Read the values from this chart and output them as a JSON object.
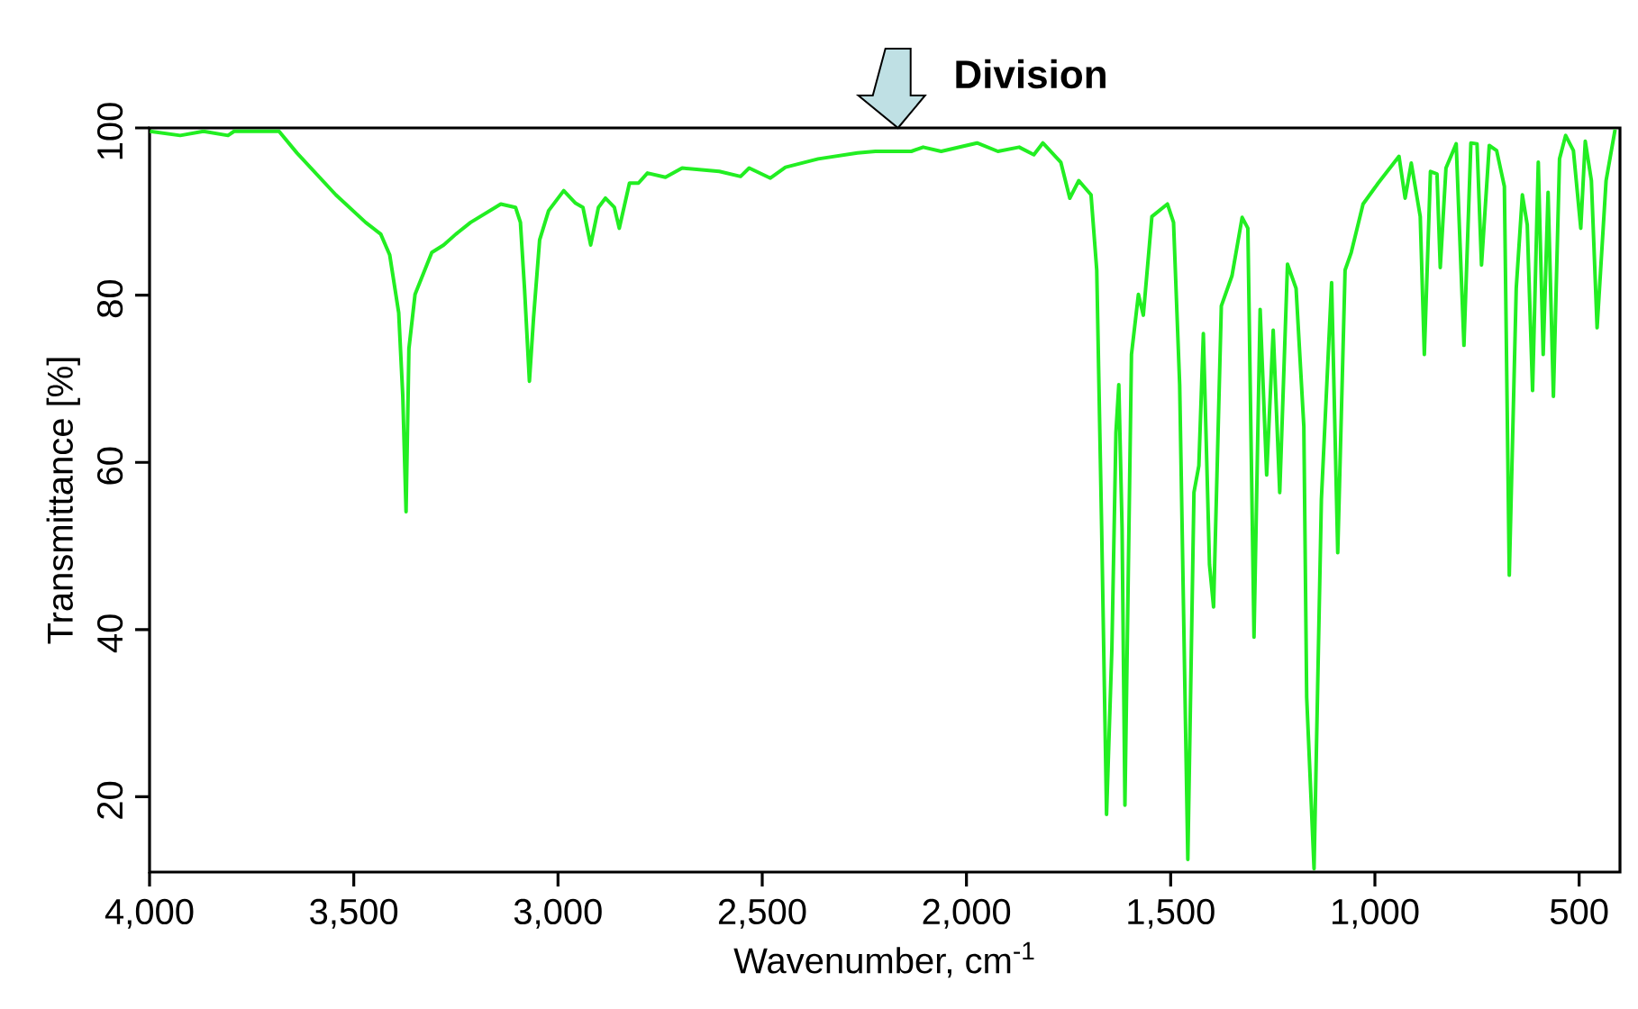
{
  "chart_data": {
    "type": "line",
    "xlabel": "Wavenumber, cm$^{-1}$",
    "ylabel": "Transmittance [%]",
    "color": "#22ee22",
    "line_style": "solid",
    "marker": "none",
    "xlim": [
      4000,
      400
    ],
    "ylim": [
      11,
      100
    ],
    "xticks": [
      {
        "value": 4000,
        "label": "4,000"
      },
      {
        "value": 3500,
        "label": "3,500"
      },
      {
        "value": 3000,
        "label": "3,000"
      },
      {
        "value": 2500,
        "label": "2,500"
      },
      {
        "value": 2000,
        "label": "2,000"
      },
      {
        "value": 1500,
        "label": "1,500"
      },
      {
        "value": 1000,
        "label": "1,000"
      },
      {
        "value": 500,
        "label": "500"
      }
    ],
    "yticks": [
      20,
      40,
      60,
      80,
      100
    ],
    "annotations": [
      "Division"
    ],
    "x": [
      3999,
      3925,
      3868,
      3808,
      3793,
      3683,
      3639,
      3544,
      3471,
      3434,
      3412,
      3390,
      3380,
      3372,
      3365,
      3350,
      3309,
      3280,
      3250,
      3214,
      3177,
      3140,
      3104,
      3092,
      3082,
      3070,
      3060,
      3045,
      3023,
      2986,
      2957,
      2939,
      2920,
      2901,
      2884,
      2862,
      2850,
      2825,
      2803,
      2781,
      2737,
      2696,
      2605,
      2553,
      2532,
      2480,
      2443,
      2363,
      2267,
      2223,
      2135,
      2106,
      2062,
      1974,
      1923,
      1871,
      1835,
      1813,
      1769,
      1747,
      1725,
      1695,
      1681,
      1669,
      1657,
      1644,
      1634,
      1627,
      1619,
      1612,
      1596,
      1579,
      1567,
      1546,
      1508,
      1493,
      1478,
      1458,
      1443,
      1431,
      1420,
      1405,
      1395,
      1376,
      1350,
      1325,
      1311,
      1296,
      1281,
      1265,
      1249,
      1233,
      1214,
      1193,
      1174,
      1167,
      1149,
      1131,
      1106,
      1091,
      1073,
      1058,
      1029,
      992,
      941,
      926,
      911,
      889,
      879,
      864,
      848,
      840,
      826,
      801,
      782,
      765,
      750,
      739,
      720,
      702,
      683,
      671,
      654,
      639,
      627,
      614,
      600,
      588,
      576,
      563,
      548,
      533,
      514,
      496,
      485,
      470,
      456,
      434,
      412
    ],
    "values": [
      99.6,
      99.1,
      99.6,
      99.1,
      99.6,
      99.6,
      97.0,
      92.0,
      88.7,
      87.3,
      84.8,
      77.9,
      67.9,
      54.1,
      73.6,
      80.1,
      85.1,
      86.0,
      87.3,
      88.7,
      89.8,
      90.9,
      90.5,
      88.7,
      80.8,
      69.7,
      77.2,
      86.6,
      90.1,
      92.5,
      91.0,
      90.5,
      86.0,
      90.5,
      91.6,
      90.5,
      88.0,
      93.4,
      93.4,
      94.6,
      94.1,
      95.2,
      94.8,
      94.2,
      95.2,
      94.0,
      95.3,
      96.3,
      97.0,
      97.2,
      97.2,
      97.7,
      97.2,
      98.2,
      97.2,
      97.7,
      96.8,
      98.2,
      95.9,
      91.6,
      93.7,
      92.0,
      83.0,
      52.1,
      17.9,
      37.7,
      63.6,
      69.3,
      52.1,
      19.0,
      72.9,
      80.1,
      77.6,
      89.4,
      90.9,
      88.7,
      69.3,
      12.5,
      56.4,
      59.6,
      75.4,
      47.8,
      42.7,
      78.7,
      82.3,
      89.3,
      88.0,
      39.1,
      78.3,
      58.5,
      75.8,
      56.4,
      83.7,
      80.8,
      64.3,
      31.9,
      11.4,
      55.6,
      81.5,
      49.2,
      83.0,
      85.1,
      90.9,
      93.4,
      96.6,
      91.6,
      95.8,
      89.4,
      72.9,
      94.8,
      94.5,
      83.3,
      95.2,
      98.1,
      74.0,
      98.2,
      98.1,
      83.6,
      97.9,
      97.3,
      93.0,
      46.5,
      80.8,
      92.0,
      88.4,
      68.6,
      95.9,
      72.9,
      92.3,
      67.9,
      96.3,
      99.1,
      97.3,
      88.0,
      98.4,
      93.7,
      76.1,
      93.7,
      99.8
    ]
  }
}
